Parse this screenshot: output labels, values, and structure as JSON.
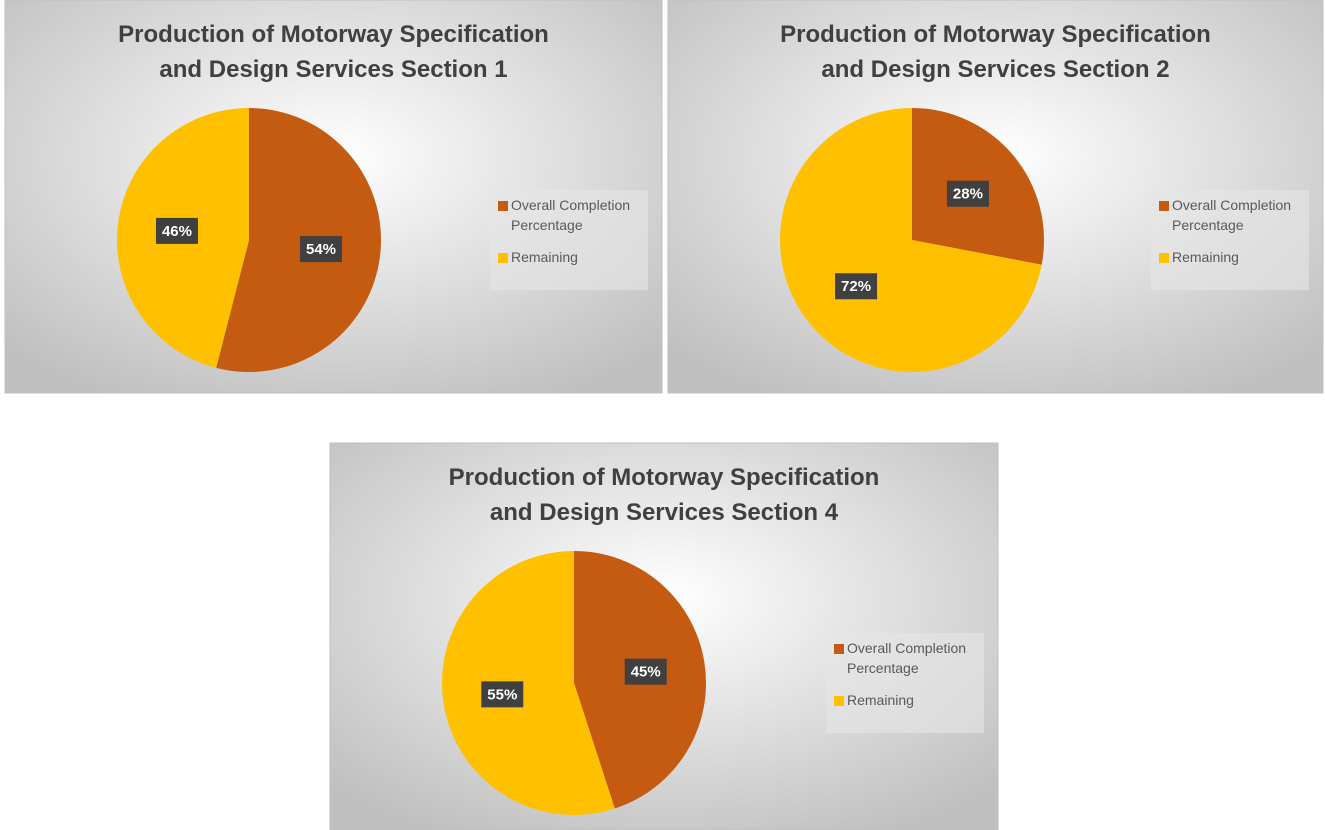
{
  "chart_data": [
    {
      "type": "pie",
      "title": "Production of Motorway Specification and Design Services Section 1",
      "categories": [
        "Overall Completion Percentage",
        "Remaining"
      ],
      "values": [
        54,
        46
      ],
      "value_labels": [
        "54%",
        "46%"
      ],
      "colors": [
        "#c55a11",
        "#ffc000"
      ],
      "legend": "right"
    },
    {
      "type": "pie",
      "title": "Production of Motorway Specification and Design Services Section 2",
      "categories": [
        "Overall Completion Percentage",
        "Remaining"
      ],
      "values": [
        28,
        72
      ],
      "value_labels": [
        "28%",
        "72%"
      ],
      "colors": [
        "#c55a11",
        "#ffc000"
      ],
      "legend": "right"
    },
    {
      "type": "pie",
      "title": "Production of Motorway Specification and Design Services Section 4",
      "categories": [
        "Overall Completion Percentage",
        "Remaining"
      ],
      "values": [
        45,
        55
      ],
      "value_labels": [
        "45%",
        "55%"
      ],
      "colors": [
        "#c55a11",
        "#ffc000"
      ],
      "legend": "right"
    }
  ]
}
